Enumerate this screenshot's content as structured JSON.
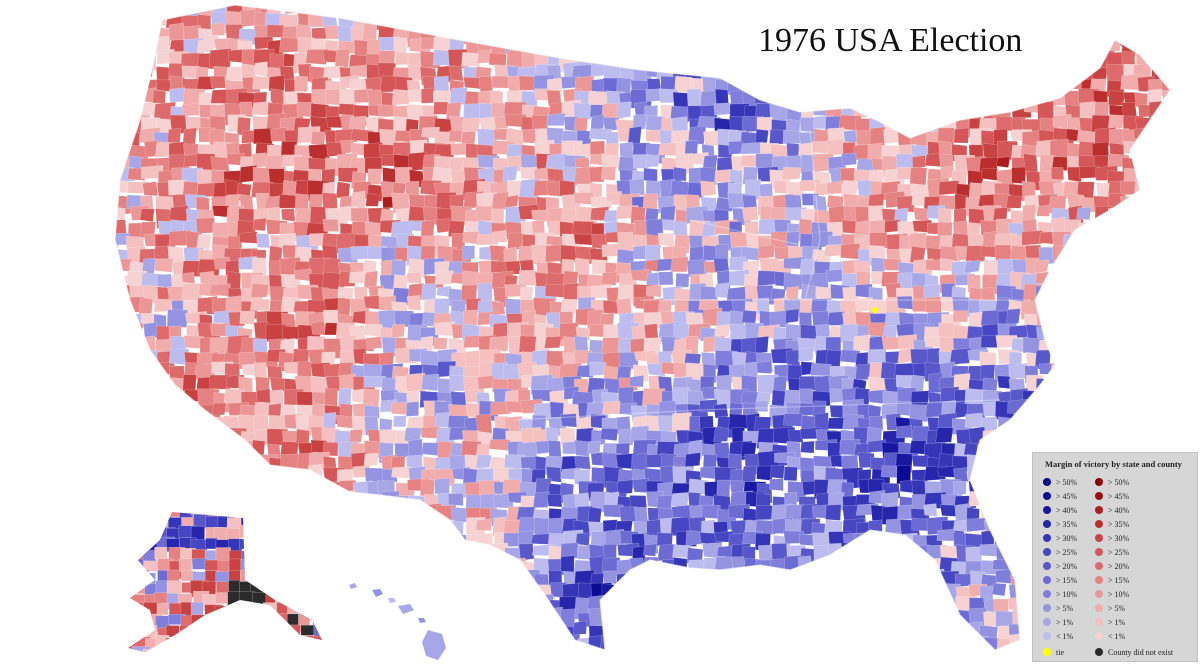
{
  "title": "1976 USA Election",
  "legend": {
    "title": "Margin of victory by state and county",
    "dem": [
      {
        "label": "> 50%",
        "color": "#00008b"
      },
      {
        "label": "> 45%",
        "color": "#0a0a96"
      },
      {
        "label": "> 40%",
        "color": "#1717a2"
      },
      {
        "label": "> 35%",
        "color": "#2626ad"
      },
      {
        "label": "> 30%",
        "color": "#3535b8"
      },
      {
        "label": "> 25%",
        "color": "#4646c2"
      },
      {
        "label": "> 20%",
        "color": "#5858cb"
      },
      {
        "label": "> 15%",
        "color": "#6b6bd3"
      },
      {
        "label": "> 10%",
        "color": "#7f7fdb"
      },
      {
        "label": "> 5%",
        "color": "#9393e2"
      },
      {
        "label": "> 1%",
        "color": "#a7a7e8"
      },
      {
        "label": "< 1%",
        "color": "#bcbcee"
      }
    ],
    "rep": [
      {
        "label": "> 50%",
        "color": "#8b0000"
      },
      {
        "label": "> 45%",
        "color": "#9c0d0d"
      },
      {
        "label": "> 40%",
        "color": "#ac1d1d"
      },
      {
        "label": "> 35%",
        "color": "#bb2e2e"
      },
      {
        "label": "> 30%",
        "color": "#c84242"
      },
      {
        "label": "> 25%",
        "color": "#d45656"
      },
      {
        "label": "> 20%",
        "color": "#dd6b6b"
      },
      {
        "label": "> 15%",
        "color": "#e58181"
      },
      {
        "label": "> 10%",
        "color": "#ec9797"
      },
      {
        "label": "> 5%",
        "color": "#f1acac"
      },
      {
        "label": "> 1%",
        "color": "#f4c0c0"
      },
      {
        "label": "< 1%",
        "color": "#f6d2d2"
      }
    ],
    "tie": {
      "label": "tie",
      "color": "#ffff00"
    },
    "none": {
      "label": "County did not exist",
      "color": "#2b2b2b"
    }
  }
}
